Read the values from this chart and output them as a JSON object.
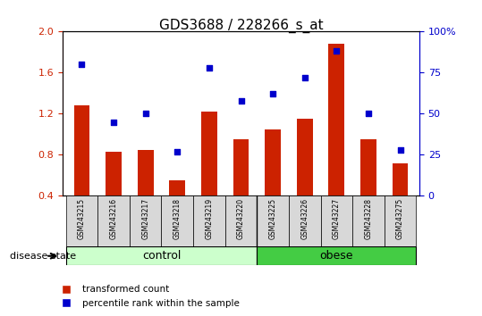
{
  "title": "GDS3688 / 228266_s_at",
  "samples": [
    "GSM243215",
    "GSM243216",
    "GSM243217",
    "GSM243218",
    "GSM243219",
    "GSM243220",
    "GSM243225",
    "GSM243226",
    "GSM243227",
    "GSM243228",
    "GSM243275"
  ],
  "transformed_count": [
    1.28,
    0.83,
    0.85,
    0.55,
    1.22,
    0.95,
    1.05,
    1.15,
    1.88,
    0.95,
    0.72
  ],
  "percentile_rank": [
    80,
    45,
    50,
    27,
    78,
    58,
    62,
    72,
    88,
    50,
    28
  ],
  "groups": {
    "control": [
      "GSM243215",
      "GSM243216",
      "GSM243217",
      "GSM243218",
      "GSM243219",
      "GSM243220"
    ],
    "obese": [
      "GSM243225",
      "GSM243226",
      "GSM243227",
      "GSM243228",
      "GSM243275"
    ]
  },
  "ylim_left": [
    0.4,
    2.0
  ],
  "ylim_right": [
    0,
    100
  ],
  "yticks_left": [
    0.4,
    0.8,
    1.2,
    1.6,
    2.0
  ],
  "yticks_right": [
    0,
    25,
    50,
    75,
    100
  ],
  "bar_color": "#CC2200",
  "dot_color": "#0000CC",
  "control_color": "#CCFFCC",
  "obese_color": "#44CC44",
  "grid_color": "#000000",
  "bar_width": 0.5,
  "legend_labels": [
    "transformed count",
    "percentile rank within the sample"
  ],
  "disease_state_label": "disease state",
  "control_label": "control",
  "obese_label": "obese"
}
